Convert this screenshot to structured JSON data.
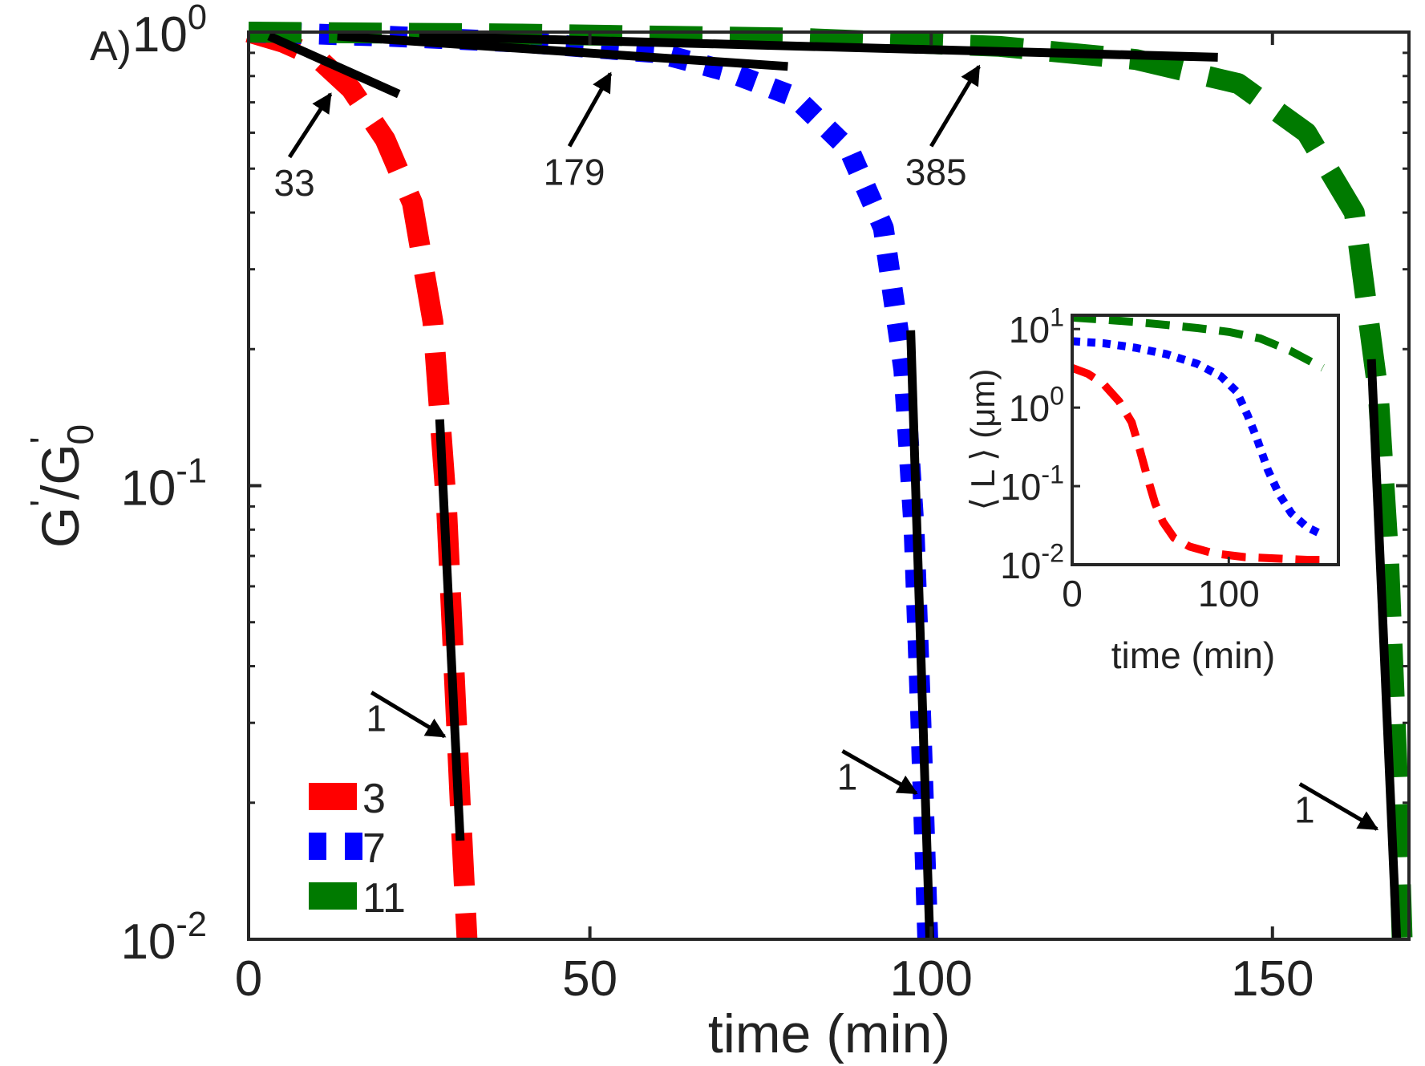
{
  "panel_label": "A)",
  "colors": {
    "red": "#ff0000",
    "blue": "#0000ff",
    "green": "#007a00",
    "fit": "#000000",
    "axis": "#262626"
  },
  "chart_data": [
    {
      "type": "line",
      "name": "main",
      "xlabel": "time (min)",
      "ylabel": "G'/G'0",
      "ylabel_parts": {
        "base": "G",
        "prime": "'",
        "sep": "/",
        "sub": "0"
      },
      "yscale": "log",
      "xlim": [
        0,
        170
      ],
      "ylim": [
        0.01,
        1
      ],
      "xticks": [
        0,
        50,
        100,
        150
      ],
      "xtick_labels": [
        "0",
        "50",
        "100",
        "150"
      ],
      "yticks": [
        0.01,
        0.1,
        1
      ],
      "ytick_labels": [
        {
          "base": "10",
          "exp": "-2"
        },
        {
          "base": "10",
          "exp": "-1"
        },
        {
          "base": "10",
          "exp": "0"
        }
      ],
      "legend": {
        "placement": "bottom-left",
        "entries": [
          "3",
          "7",
          "11"
        ]
      },
      "series": [
        {
          "name": "3",
          "color": "red",
          "style": "dashed",
          "x": [
            0,
            5,
            10,
            15,
            20,
            24,
            27,
            29,
            31,
            32
          ],
          "y": [
            1,
            0.95,
            0.88,
            0.75,
            0.58,
            0.42,
            0.23,
            0.09,
            0.02,
            0.01
          ]
        },
        {
          "name": "7",
          "color": "blue",
          "style": "dotted",
          "x": [
            0,
            20,
            40,
            60,
            70,
            80,
            88,
            93,
            96,
            97.5,
            98.5,
            99.5
          ],
          "y": [
            1,
            0.98,
            0.95,
            0.9,
            0.82,
            0.72,
            0.55,
            0.37,
            0.18,
            0.08,
            0.03,
            0.01
          ]
        },
        {
          "name": "11",
          "color": "green",
          "style": "dashed",
          "x": [
            0,
            40,
            80,
            110,
            130,
            145,
            155,
            162,
            165.5,
            167,
            168.2,
            169
          ],
          "y": [
            1,
            0.99,
            0.97,
            0.93,
            0.87,
            0.77,
            0.6,
            0.4,
            0.16,
            0.07,
            0.025,
            0.01
          ]
        }
      ],
      "fit_lines": [
        {
          "name": "fit-slope-33",
          "x": [
            3,
            22
          ],
          "y": [
            0.98,
            0.73
          ]
        },
        {
          "name": "fit-slope-179",
          "x": [
            13,
            79
          ],
          "y": [
            0.98,
            0.84
          ]
        },
        {
          "name": "fit-slope-385",
          "x": [
            25,
            142
          ],
          "y": [
            0.98,
            0.88
          ]
        },
        {
          "name": "fit-slope-1-red",
          "x": [
            28,
            31
          ],
          "y": [
            0.14,
            0.0165
          ]
        },
        {
          "name": "fit-slope-1-blue",
          "x": [
            97,
            99.8
          ],
          "y": [
            0.22,
            0.01
          ]
        },
        {
          "name": "fit-slope-1-green",
          "x": [
            164.5,
            168.2
          ],
          "y": [
            0.19,
            0.01
          ]
        }
      ],
      "annotations": [
        {
          "text": "33",
          "arrow_from": [
            6,
            0.53
          ],
          "arrow_to": [
            12,
            0.73
          ]
        },
        {
          "text": "179",
          "arrow_from": [
            47,
            0.56
          ],
          "arrow_to": [
            53,
            0.81
          ]
        },
        {
          "text": "385",
          "arrow_from": [
            100,
            0.56
          ],
          "arrow_to": [
            107,
            0.84
          ]
        },
        {
          "text": "1",
          "arrow_from": [
            18,
            0.035
          ],
          "arrow_to": [
            28.7,
            0.028
          ]
        },
        {
          "text": "1",
          "arrow_from": [
            87,
            0.026
          ],
          "arrow_to": [
            97.8,
            0.021
          ]
        },
        {
          "text": "1",
          "arrow_from": [
            154,
            0.022
          ],
          "arrow_to": [
            165.3,
            0.0175
          ]
        }
      ]
    },
    {
      "type": "line",
      "name": "inset",
      "xlabel": "time (min)",
      "ylabel": "⟨ L ⟩ (μm)",
      "yscale": "log",
      "xlim": [
        0,
        170
      ],
      "ylim": [
        0.01,
        15
      ],
      "xticks": [
        0,
        100
      ],
      "xtick_labels": [
        "0",
        "100"
      ],
      "yticks": [
        0.01,
        0.1,
        1,
        10
      ],
      "ytick_labels": [
        {
          "base": "10",
          "exp": "-2"
        },
        {
          "base": "10",
          "exp": "-1"
        },
        {
          "base": "10",
          "exp": "0"
        },
        {
          "base": "10",
          "exp": "1"
        }
      ],
      "series": [
        {
          "name": "3",
          "color": "red",
          "style": "dashed",
          "x": [
            0,
            10,
            20,
            30,
            38,
            43,
            48,
            53,
            58,
            65,
            75,
            90,
            110,
            130,
            150,
            160
          ],
          "y": [
            3.2,
            2.7,
            2.0,
            1.2,
            0.65,
            0.3,
            0.13,
            0.06,
            0.035,
            0.022,
            0.017,
            0.014,
            0.0125,
            0.012,
            0.0115,
            0.0115
          ]
        },
        {
          "name": "7",
          "color": "blue",
          "style": "dotted",
          "x": [
            0,
            20,
            40,
            60,
            80,
            95,
            105,
            112,
            118,
            125,
            132,
            140,
            150,
            160
          ],
          "y": [
            7,
            6.6,
            5.8,
            4.8,
            3.6,
            2.5,
            1.6,
            0.8,
            0.4,
            0.16,
            0.08,
            0.045,
            0.03,
            0.024
          ]
        },
        {
          "name": "11",
          "color": "green",
          "style": "dashed",
          "x": [
            0,
            20,
            40,
            60,
            80,
            100,
            120,
            140,
            160
          ],
          "y": [
            14,
            13.2,
            12.3,
            11.3,
            10.3,
            9.2,
            7.6,
            5.2,
            3.2
          ]
        }
      ]
    }
  ]
}
